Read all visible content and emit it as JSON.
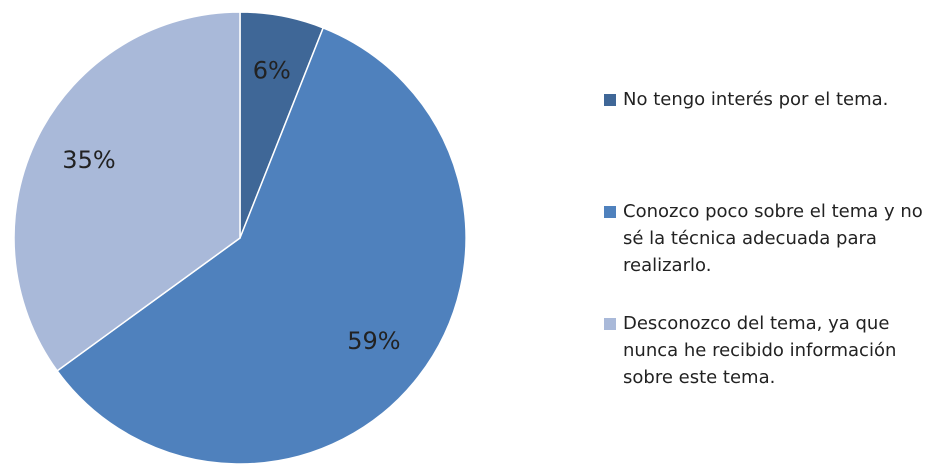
{
  "chart_data": {
    "type": "pie",
    "categories": [
      "No tengo interés por el tema.",
      "Conozco poco sobre el tema y no sé la técnica adecuada para realizarlo.",
      "Desconozco del tema, ya que nunca he recibido información sobre este tema."
    ],
    "values": [
      6,
      59,
      35
    ],
    "value_labels": [
      "6%",
      "59%",
      "35%"
    ],
    "colors": [
      "#3f6797",
      "#4f81bd",
      "#a9b9d9"
    ],
    "legend": "right"
  }
}
